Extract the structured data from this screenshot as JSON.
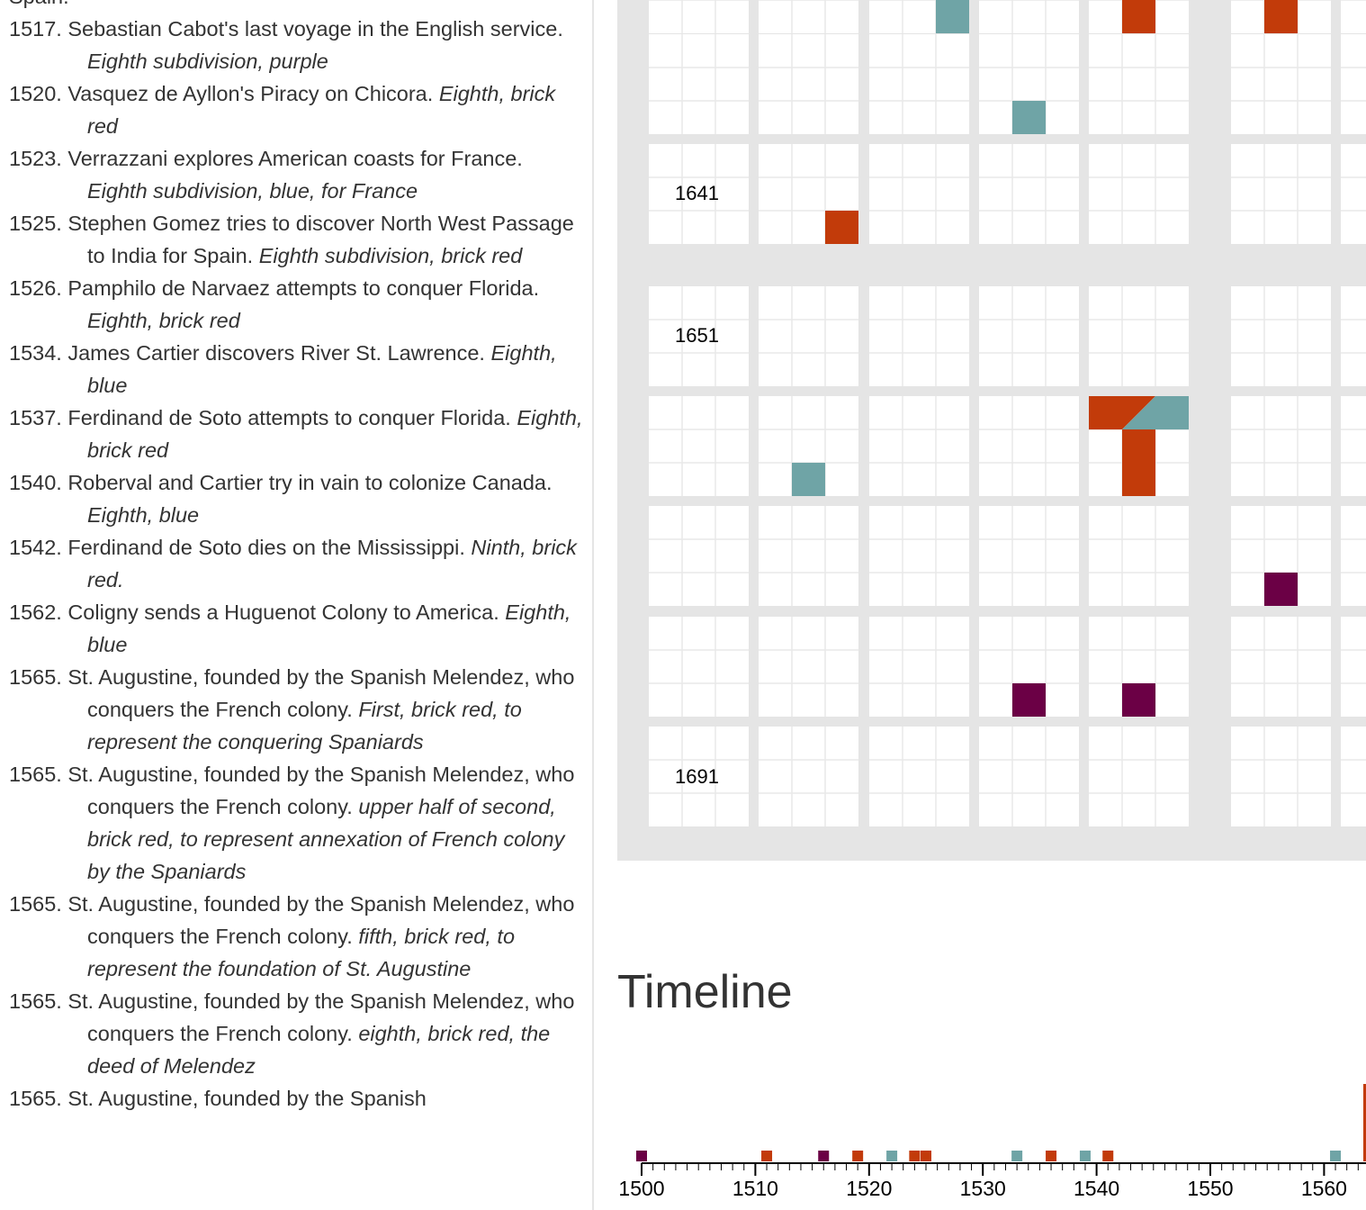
{
  "events": [
    {
      "text": "Spain.",
      "desc": ""
    },
    {
      "text": "1517. Sebastian Cabot's last voyage in the English service.",
      "desc": "Eighth subdivision, purple"
    },
    {
      "text": "1520. Vasquez de Ayllon's Piracy on Chicora.",
      "desc": "Eighth, brick red"
    },
    {
      "text": "1523. Verrazzani explores American coasts for France.",
      "desc": "Eighth subdivision, blue, for France"
    },
    {
      "text": "1525. Stephen Gomez tries to discover North West Passage to India for Spain.",
      "desc": "Eighth subdivision, brick red"
    },
    {
      "text": "1526. Pamphilo de Narvaez attempts to conquer Florida.",
      "desc": "Eighth, brick red"
    },
    {
      "text": "1534. James Cartier discovers River St. Lawrence.",
      "desc": "Eighth, blue"
    },
    {
      "text": "1537. Ferdinand de Soto attempts to conquer Florida.",
      "desc": "Eighth, brick red"
    },
    {
      "text": "1540. Roberval and Cartier try in vain to colonize Canada.",
      "desc": "Eighth, blue"
    },
    {
      "text": "1542. Ferdinand de Soto dies on the Mississippi.",
      "desc": "Ninth, brick red."
    },
    {
      "text": "1562. Coligny sends a Huguenot Colony to America.",
      "desc": "Eighth, blue"
    },
    {
      "text": "1565. St. Augustine, founded by the Spanish Melendez, who conquers the French colony.",
      "desc": "First, brick red, to represent the conquering Spaniards"
    },
    {
      "text": "1565. St. Augustine, founded by the Spanish Melendez, who conquers the French colony.",
      "desc": "upper half of second, brick red, to represent annexation of French colony by the Spaniards"
    },
    {
      "text": "1565. St. Augustine, founded by the Spanish Melendez, who conquers the French colony.",
      "desc": "fifth, brick red, to represent the foundation of St. Augustine"
    },
    {
      "text": "1565. St. Augustine, founded by the Spanish Melendez, who conquers the French colony.",
      "desc": "eighth, brick red, the deed of Melendez"
    },
    {
      "text": "1565. St. Augustine, founded by the Spanish",
      "desc": ""
    }
  ],
  "colors": {
    "brick_red": "#c23b0a",
    "blue": "#6fa4a6",
    "purple": "#6b0045",
    "grid_background": "#e5e5e5",
    "cell_lines": "#e9e9e9"
  },
  "timeline": {
    "title": "Timeline"
  },
  "chart_data": [
    {
      "type": "heatmap",
      "description_of_encoding": "Chronological grid; each decade block is 3x3 cells (one cell per year). Cells filled with event color.",
      "year_labels": [
        "1641",
        "1651",
        "1691"
      ],
      "filled_cells": [
        {
          "row": 0,
          "col": 7,
          "sub_row": 2,
          "sub_col": 2,
          "color": "blue"
        },
        {
          "row": 0,
          "col": 9,
          "sub_row": 2,
          "sub_col": 1,
          "color": "brick_red"
        },
        {
          "row": 0,
          "col": 11,
          "sub_row": 2,
          "sub_col": 1,
          "color": "brick_red"
        },
        {
          "row": 1,
          "col": 8,
          "sub_row": 2,
          "sub_col": 1,
          "color": "blue"
        },
        {
          "row": 2,
          "col": 5,
          "sub_row": 2,
          "sub_col": 2,
          "color": "brick_red"
        },
        {
          "row": 3,
          "col": 9,
          "sub_row": 0,
          "sub_col": 0,
          "color": "brick_red"
        },
        {
          "row": 3,
          "col": 9,
          "sub_row": 0,
          "sub_col": 1,
          "color": "brick_red",
          "split": "blue"
        },
        {
          "row": 3,
          "col": 9,
          "sub_row": 0,
          "sub_col": 2,
          "color": "blue"
        },
        {
          "row": 3,
          "col": 9,
          "sub_row": 1,
          "sub_col": 1,
          "color": "brick_red"
        },
        {
          "row": 3,
          "col": 9,
          "sub_row": 2,
          "sub_col": 1,
          "color": "brick_red"
        },
        {
          "row": 3,
          "col": 5,
          "sub_row": 2,
          "sub_col": 1,
          "color": "blue"
        },
        {
          "row": 4,
          "col": 11,
          "sub_row": 2,
          "sub_col": 1,
          "color": "purple"
        },
        {
          "row": 5,
          "col": 8,
          "sub_row": 2,
          "sub_col": 1,
          "color": "purple"
        },
        {
          "row": 5,
          "col": 9,
          "sub_row": 2,
          "sub_col": 1,
          "color": "purple"
        }
      ]
    },
    {
      "type": "scatter",
      "x_range": [
        1500,
        1563
      ],
      "tick_labels": [
        "1500",
        "1510",
        "1520",
        "1530",
        "1540",
        "1550",
        "1560"
      ],
      "points": [
        {
          "x": 1500,
          "color": "purple"
        },
        {
          "x": 1511,
          "color": "brick_red"
        },
        {
          "x": 1516,
          "color": "purple"
        },
        {
          "x": 1519,
          "color": "brick_red"
        },
        {
          "x": 1522,
          "color": "blue"
        },
        {
          "x": 1524,
          "color": "brick_red"
        },
        {
          "x": 1525,
          "color": "brick_red"
        },
        {
          "x": 1533,
          "color": "blue"
        },
        {
          "x": 1536,
          "color": "brick_red"
        },
        {
          "x": 1539,
          "color": "blue"
        },
        {
          "x": 1541,
          "color": "brick_red"
        },
        {
          "x": 1561,
          "color": "blue"
        }
      ]
    }
  ]
}
